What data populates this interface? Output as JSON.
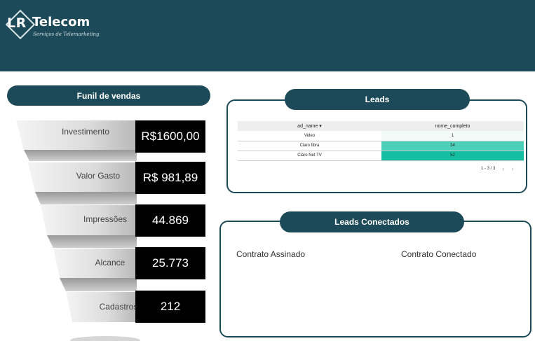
{
  "header": {
    "logo_lr": "LR",
    "logo_telecom": "Telecom",
    "logo_subtitle": "Serviços de Telemarketing",
    "background_color": "#1d4a59"
  },
  "funnel": {
    "title": "Funil de vendas",
    "stages": [
      {
        "label": "Investimento",
        "value": "R$1600,00"
      },
      {
        "label": "Valor Gasto",
        "value": "R$ 981,89"
      },
      {
        "label": "Impressões",
        "value": "44.869"
      },
      {
        "label": "Alcance",
        "value": "25.773"
      },
      {
        "label": "Cadastros",
        "value": "212"
      }
    ]
  },
  "leads": {
    "title": "Leads",
    "columns": [
      "ad_name ▾",
      "nome_completo"
    ],
    "rows": [
      {
        "ad_name": "Video",
        "nome_completo": "1",
        "fill": "#f3fbf9"
      },
      {
        "ad_name": "Claro fibra",
        "nome_completo": "34",
        "fill": "#4dd0b9"
      },
      {
        "ad_name": "Claro Net TV",
        "nome_completo": "52",
        "fill": "#13bfa0"
      }
    ],
    "pager_text": "1 - 3 / 3",
    "prev_icon": "‹",
    "next_icon": "›"
  },
  "leads_conectados": {
    "title": "Leads Conectados",
    "labels": [
      "Contrato Assinado",
      "Contrato Conectado"
    ]
  }
}
